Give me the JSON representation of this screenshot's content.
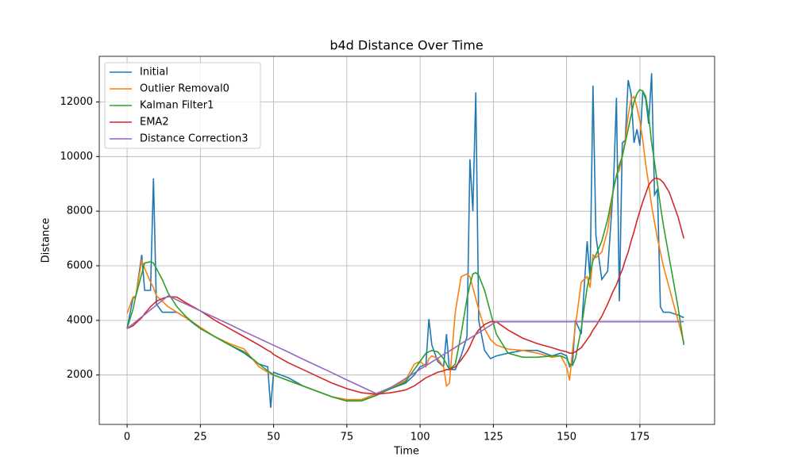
{
  "chart_data": {
    "type": "line",
    "title": "b4d Distance Over Time",
    "x_label": "Time",
    "y_label": "Distance",
    "x": [
      0,
      2,
      3,
      5,
      6,
      8,
      9,
      10,
      12,
      14,
      17,
      20,
      25,
      30,
      35,
      40,
      45,
      48,
      49,
      50,
      55,
      60,
      65,
      70,
      75,
      80,
      85,
      90,
      95,
      98,
      100,
      102,
      103,
      104,
      106,
      108,
      109,
      110,
      112,
      114,
      116,
      117,
      118,
      119,
      120,
      122,
      124,
      126,
      130,
      135,
      140,
      145,
      148,
      150,
      151,
      152,
      153,
      155,
      157,
      158,
      159,
      160,
      162,
      164,
      166,
      167,
      168,
      169,
      170,
      171,
      172,
      173,
      174,
      175,
      176,
      177,
      178,
      179,
      180,
      181,
      182,
      183,
      185,
      188,
      190
    ],
    "series": [
      {
        "name": "Initial",
        "color": "#1f77b4",
        "values": [
          3700,
          4800,
          4900,
          6400,
          5100,
          5100,
          9200,
          4600,
          4300,
          4300,
          4300,
          4100,
          3700,
          3400,
          3100,
          2800,
          2400,
          2300,
          800,
          2100,
          1900,
          1600,
          1400,
          1200,
          1050,
          1100,
          1300,
          1500,
          1700,
          2000,
          2300,
          2400,
          4050,
          3100,
          2500,
          2300,
          3500,
          2200,
          2200,
          2700,
          3400,
          9900,
          8000,
          12350,
          4000,
          2900,
          2600,
          2700,
          2800,
          2900,
          2900,
          2700,
          2800,
          2700,
          2300,
          2400,
          4000,
          3500,
          6900,
          5500,
          12600,
          7100,
          5500,
          5800,
          9000,
          12150,
          4700,
          10500,
          10600,
          12800,
          12300,
          10500,
          11000,
          10400,
          12400,
          12100,
          11200,
          13050,
          8600,
          8800,
          4500,
          4300,
          4300,
          4200,
          4100
        ]
      },
      {
        "name": "Outlier Removal0",
        "color": "#ff7f0e",
        "values": [
          4250,
          4850,
          4900,
          6200,
          5900,
          5400,
          5200,
          4900,
          4700,
          4500,
          4300,
          4100,
          3750,
          3400,
          3150,
          2950,
          2300,
          2100,
          2050,
          2000,
          1800,
          1600,
          1400,
          1200,
          1100,
          1100,
          1300,
          1550,
          1800,
          2400,
          2500,
          2300,
          2600,
          2700,
          2600,
          2300,
          1600,
          1700,
          4300,
          5600,
          5700,
          5600,
          5200,
          4800,
          4400,
          3700,
          3300,
          3100,
          2950,
          2900,
          2800,
          2650,
          2700,
          2300,
          1800,
          2900,
          3800,
          5400,
          5600,
          5200,
          6400,
          6300,
          6500,
          7300,
          8800,
          9300,
          9500,
          10000,
          10600,
          11500,
          12100,
          12200,
          11800,
          11300,
          10600,
          9700,
          9000,
          8200,
          7600,
          7000,
          6500,
          6000,
          5200,
          4000,
          3200
        ]
      },
      {
        "name": "Kalman Filter1",
        "color": "#2ca02c",
        "values": [
          3700,
          4400,
          4900,
          5700,
          6100,
          6150,
          6100,
          5900,
          5500,
          5000,
          4500,
          4150,
          3700,
          3400,
          3100,
          2850,
          2400,
          2150,
          2080,
          2000,
          1800,
          1600,
          1400,
          1200,
          1050,
          1050,
          1250,
          1500,
          1750,
          2200,
          2500,
          2800,
          2850,
          2900,
          2850,
          2600,
          2400,
          2200,
          2400,
          3500,
          4800,
          5300,
          5700,
          5750,
          5650,
          5100,
          4300,
          3500,
          2800,
          2650,
          2650,
          2700,
          2700,
          2600,
          2400,
          2350,
          2600,
          3700,
          5200,
          5700,
          6200,
          6400,
          6900,
          7700,
          8800,
          9300,
          9700,
          10000,
          10500,
          11000,
          11500,
          12000,
          12300,
          12450,
          12400,
          12200,
          11500,
          10500,
          9800,
          9000,
          8200,
          7500,
          6300,
          4500,
          3100
        ]
      },
      {
        "name": "EMA2",
        "color": "#d62728",
        "values": [
          3700,
          3800,
          3900,
          4100,
          4250,
          4500,
          4600,
          4700,
          4800,
          4870,
          4850,
          4650,
          4350,
          4000,
          3700,
          3400,
          3100,
          2900,
          2850,
          2750,
          2450,
          2200,
          1950,
          1700,
          1500,
          1350,
          1300,
          1350,
          1450,
          1600,
          1750,
          1900,
          1950,
          2000,
          2100,
          2150,
          2200,
          2200,
          2300,
          2550,
          2850,
          3050,
          3300,
          3500,
          3650,
          3850,
          3950,
          3950,
          3650,
          3350,
          3150,
          3000,
          2900,
          2850,
          2800,
          2800,
          2850,
          3000,
          3300,
          3450,
          3650,
          3800,
          4150,
          4600,
          5100,
          5300,
          5600,
          5850,
          6200,
          6500,
          6900,
          7250,
          7650,
          8000,
          8350,
          8650,
          8950,
          9100,
          9200,
          9200,
          9150,
          9050,
          8700,
          7800,
          7000
        ]
      },
      {
        "name": "Distance Correction3",
        "color": "#9467bd",
        "values": [
          3700,
          3870,
          3960,
          4130,
          4210,
          4390,
          4470,
          4560,
          4730,
          4900,
          4750,
          4600,
          4350,
          4100,
          3850,
          3590,
          3340,
          3190,
          3140,
          3090,
          2840,
          2580,
          2330,
          2080,
          1820,
          1570,
          1320,
          1540,
          1870,
          2070,
          2210,
          2340,
          2410,
          2480,
          2610,
          2750,
          2810,
          2880,
          3010,
          3150,
          3280,
          3350,
          3410,
          3480,
          3550,
          3680,
          3820,
          3950,
          3950,
          3950,
          3950,
          3950,
          3950,
          3950,
          3950,
          3950,
          3950,
          3950,
          3950,
          3950,
          3950,
          3950,
          3950,
          3950,
          3950,
          3950,
          3950,
          3950,
          3950,
          3950,
          3950,
          3950,
          3950,
          3950,
          3950,
          3950,
          3950,
          3950,
          3950,
          3950,
          3950,
          3950,
          3950,
          3950,
          3950
        ]
      }
    ],
    "xlim": [
      -9.5,
      200.5
    ],
    "ylim": [
      190,
      13670
    ],
    "xticks": [
      0,
      25,
      50,
      75,
      100,
      125,
      150,
      175
    ],
    "yticks": [
      2000,
      4000,
      6000,
      8000,
      10000,
      12000
    ],
    "grid": true,
    "legend": "upper left"
  }
}
